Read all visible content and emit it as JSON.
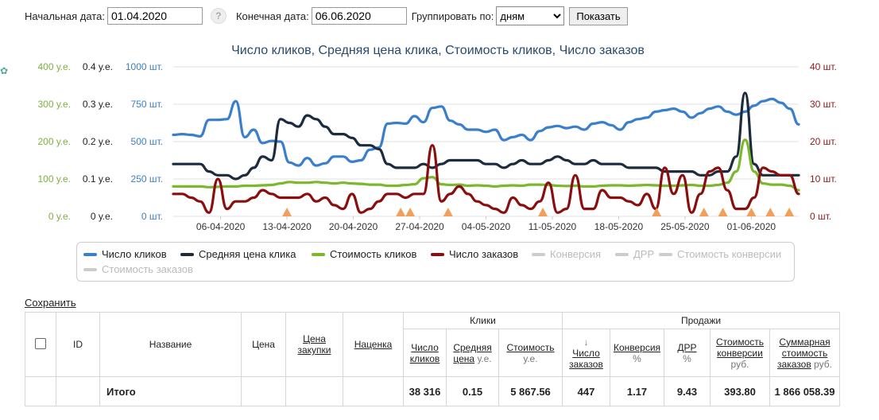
{
  "filters": {
    "start_label": "Начальная дата:",
    "start_value": "01.04.2020",
    "help": "?",
    "end_label": "Конечная дата:",
    "end_value": "06.06.2020",
    "group_label": "Группировать по:",
    "group_value": "дням",
    "show_button": "Показать"
  },
  "chart_data": {
    "type": "line",
    "title": "Число кликов, Средняя цена клика, Стоимость кликов, Число заказов",
    "x_ticks": [
      "06-04-2020",
      "13-04-2020",
      "20-04-2020",
      "27-04-2020",
      "04-05-2020",
      "11-05-2020",
      "18-05-2020",
      "25-05-2020",
      "01-06-2020"
    ],
    "x_start": "01-04-2020",
    "x_end": "06-06-2020",
    "grid": "horizontal",
    "axes": {
      "cost": {
        "labels": [
          "400 у.е.",
          "300 у.е.",
          "200 у.е.",
          "100 у.е.",
          "0 у.е."
        ],
        "range": [
          0,
          400
        ],
        "color": "#7db03f"
      },
      "cpc": {
        "labels": [
          "0.4 у.е.",
          "0.3 у.е.",
          "0.2 у.е.",
          "0.1 у.е.",
          "0 у.е."
        ],
        "range": [
          0,
          0.4
        ],
        "color": "#222222"
      },
      "clicks": {
        "labels": [
          "1000 шт.",
          "750 шт.",
          "500 шт.",
          "250 шт.",
          "0 шт."
        ],
        "range": [
          0,
          1000
        ],
        "color": "#3d7fc1"
      },
      "orders": {
        "labels": [
          "40 шт.",
          "30 шт.",
          "20 шт.",
          "10 шт.",
          "0 шт."
        ],
        "range": [
          0,
          40
        ],
        "color": "#8b1a1a"
      }
    },
    "series": [
      {
        "name": "Число кликов",
        "axis": "clicks",
        "color": "#3a7fcd",
        "values": [
          545,
          550,
          545,
          535,
          645,
          645,
          650,
          770,
          530,
          580,
          490,
          505,
          500,
          360,
          340,
          390,
          340,
          355,
          400,
          400,
          365,
          375,
          445,
          460,
          620,
          625,
          620,
          670,
          630,
          725,
          735,
          640,
          615,
          580,
          580,
          565,
          580,
          510,
          530,
          545,
          510,
          570,
          595,
          605,
          590,
          600,
          580,
          620,
          630,
          610,
          580,
          630,
          650,
          660,
          700,
          710,
          720,
          700,
          660,
          690,
          720,
          735,
          700,
          680,
          700,
          740,
          770,
          785,
          760,
          720,
          615
        ]
      },
      {
        "name": "Средняя цена клика",
        "axis": "cpc",
        "color": "#1c2b3d",
        "values": [
          0.14,
          0.14,
          0.14,
          0.14,
          0.12,
          0.11,
          0.11,
          0.1,
          0.11,
          0.13,
          0.16,
          0.15,
          0.26,
          0.25,
          0.24,
          0.27,
          0.26,
          0.24,
          0.22,
          0.22,
          0.21,
          0.19,
          0.19,
          0.18,
          0.14,
          0.13,
          0.13,
          0.13,
          0.14,
          0.13,
          0.14,
          0.15,
          0.15,
          0.15,
          0.15,
          0.14,
          0.14,
          0.13,
          0.14,
          0.15,
          0.14,
          0.14,
          0.15,
          0.16,
          0.15,
          0.14,
          0.14,
          0.15,
          0.14,
          0.14,
          0.14,
          0.13,
          0.13,
          0.13,
          0.13,
          0.12,
          0.12,
          0.12,
          0.12,
          0.11,
          0.11,
          0.12,
          0.12,
          0.16,
          0.33,
          0.14,
          0.11,
          0.11,
          0.11,
          0.11,
          0.11
        ]
      },
      {
        "name": "Стоимость кликов",
        "axis": "cost",
        "color": "#7cb82f",
        "values": [
          80,
          80,
          80,
          80,
          78,
          79,
          80,
          80,
          82,
          82,
          83,
          84,
          88,
          92,
          90,
          90,
          92,
          90,
          88,
          90,
          88,
          87,
          85,
          85,
          82,
          82,
          84,
          86,
          102,
          105,
          86,
          84,
          85,
          82,
          83,
          82,
          80,
          82,
          83,
          82,
          85,
          85,
          84,
          82,
          81,
          82,
          80,
          80,
          82,
          83,
          83,
          82,
          83,
          84,
          83,
          82,
          82,
          83,
          84,
          82,
          82,
          84,
          90,
          120,
          205,
          120,
          88,
          85,
          85,
          82,
          70
        ]
      },
      {
        "name": "Число заказов",
        "axis": "orders",
        "color": "#8b0e0e",
        "values": [
          6,
          6,
          5,
          4,
          1,
          10,
          2,
          4,
          4,
          5,
          7,
          6,
          5,
          5,
          5,
          6,
          4,
          5,
          3,
          2,
          6,
          1,
          2,
          4,
          6,
          6,
          5,
          6,
          6,
          19,
          4,
          6,
          8,
          6,
          4,
          3,
          2,
          1,
          5,
          3,
          2,
          4,
          9,
          1,
          2,
          11,
          2,
          2,
          7,
          5,
          5,
          4,
          3,
          6,
          2,
          13,
          6,
          11,
          1,
          6,
          12,
          13,
          7,
          2,
          2,
          5,
          13,
          12,
          11,
          11,
          6
        ]
      },
      {
        "name": "Конверсия",
        "color": "#cccccc",
        "hidden": true
      },
      {
        "name": "ДРР",
        "color": "#cccccc",
        "hidden": true
      },
      {
        "name": "Стоимость конверсии",
        "color": "#cccccc",
        "hidden": true
      },
      {
        "name": "Стоимость заказов",
        "color": "#cccccc",
        "hidden": true
      }
    ],
    "markers": {
      "type": "triangle",
      "color": "#f0a05a",
      "dates": [
        "13-04-2020",
        "25-04-2020",
        "26-04-2020",
        "30-04-2020",
        "10-05-2020",
        "22-05-2020",
        "27-05-2020",
        "29-05-2020",
        "01-06-2020",
        "03-06-2020",
        "05-06-2020"
      ]
    },
    "legend_position": "bottom"
  },
  "save_link": "Сохранить",
  "table": {
    "headers": {
      "id": "ID",
      "name": "Название",
      "price": "Цена",
      "purchase_price": "Цена закупки",
      "markup": "Наценка",
      "clicks_group": "Клики",
      "sales_group": "Продажи",
      "clicks_count": "Число кликов",
      "cpc": "Средняя цена",
      "cpc_unit": "у.е.",
      "cost": "Стоимость",
      "cost_unit": "у.е.",
      "orders_arrow": "↓",
      "orders": "Число заказов",
      "conversion": "Конверсия",
      "conversion_unit": "%",
      "drr": "ДРР",
      "drr_unit": "%",
      "conv_cost": "Стоимость конверсии",
      "conv_cost_unit": "руб.",
      "total_cost": "Суммарная стоимость заказов",
      "total_cost_unit": "руб."
    },
    "total_row": {
      "name": "Итого",
      "clicks": "38 316",
      "cpc": "0.15",
      "cost": "5 867.56",
      "orders": "447",
      "conversion": "1.17",
      "drr": "9.43",
      "conv_cost": "393.80",
      "total_cost": "1 866 058.39"
    }
  }
}
